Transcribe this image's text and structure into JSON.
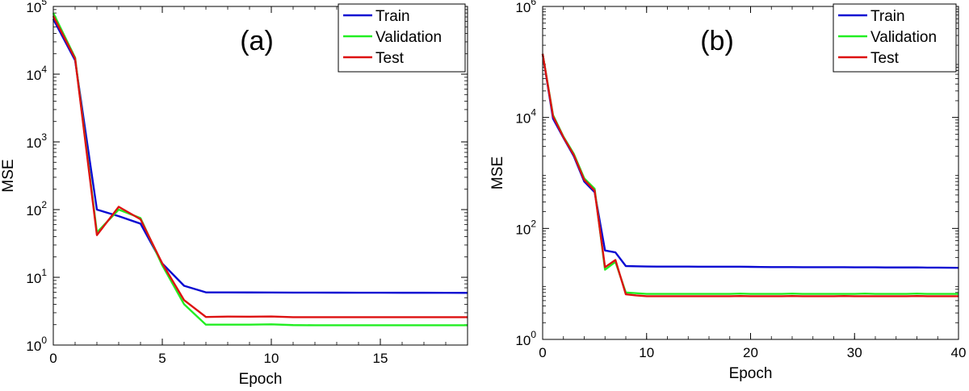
{
  "colors": {
    "train": "#0a0ad2",
    "validation": "#22ee22",
    "test": "#dd1111"
  },
  "chart_data": [
    {
      "type": "line",
      "panel_label": "(a)",
      "xlabel": "Epoch",
      "ylabel": "MSE",
      "yscale": "log",
      "xlim": [
        0,
        19
      ],
      "ylim": [
        1,
        100000
      ],
      "xticks": [
        0,
        5,
        10,
        15
      ],
      "yticks": [
        1,
        10,
        100,
        1000,
        10000,
        100000
      ],
      "ytick_exponents": [
        "0",
        "1",
        "2",
        "3",
        "4",
        "5"
      ],
      "legend_position": "top-right",
      "series": [
        {
          "name": "Train",
          "color_key": "train",
          "x": [
            0,
            1,
            2,
            3,
            4,
            5,
            6,
            7,
            8,
            9,
            10,
            11,
            12,
            13,
            14,
            15,
            16,
            17,
            18,
            19
          ],
          "y": [
            65000,
            16000,
            100,
            80,
            62,
            16,
            7.5,
            6.0,
            6.0,
            5.98,
            5.97,
            5.95,
            5.95,
            5.94,
            5.93,
            5.93,
            5.92,
            5.92,
            5.91,
            5.9
          ]
        },
        {
          "name": "Validation",
          "color_key": "validation",
          "x": [
            0,
            1,
            2,
            3,
            4,
            5,
            6,
            7,
            8,
            9,
            10,
            11,
            12,
            13,
            14,
            15,
            16,
            17,
            18,
            19
          ],
          "y": [
            80000,
            17500,
            46,
            100,
            75,
            15,
            4.0,
            2.0,
            2.0,
            2.0,
            2.02,
            1.97,
            1.96,
            1.96,
            1.96,
            1.96,
            1.96,
            1.96,
            1.96,
            1.96
          ]
        },
        {
          "name": "Test",
          "color_key": "test",
          "x": [
            0,
            1,
            2,
            3,
            4,
            5,
            6,
            7,
            8,
            9,
            10,
            11,
            12,
            13,
            14,
            15,
            16,
            17,
            18,
            19
          ],
          "y": [
            72000,
            17000,
            42,
            110,
            72,
            16,
            4.6,
            2.6,
            2.63,
            2.62,
            2.64,
            2.58,
            2.58,
            2.58,
            2.58,
            2.58,
            2.58,
            2.58,
            2.58,
            2.58
          ]
        }
      ]
    },
    {
      "type": "line",
      "panel_label": "(b)",
      "xlabel": "Epoch",
      "ylabel": "MSE",
      "yscale": "log",
      "xlim": [
        0,
        40
      ],
      "ylim": [
        1,
        1000000
      ],
      "xticks": [
        0,
        10,
        20,
        30,
        40
      ],
      "yticks": [
        1,
        100,
        10000,
        1000000
      ],
      "ytick_exponents": [
        "0",
        "2",
        "4",
        "6"
      ],
      "legend_position": "top-right",
      "series": [
        {
          "name": "Train",
          "color_key": "train",
          "x": [
            0,
            1,
            2,
            3,
            4,
            5,
            6,
            7,
            8,
            9,
            10,
            11,
            12,
            13,
            14,
            15,
            16,
            17,
            18,
            19,
            20,
            21,
            22,
            23,
            24,
            25,
            26,
            27,
            28,
            29,
            30,
            31,
            32,
            33,
            34,
            35,
            36,
            37,
            38,
            39,
            40
          ],
          "y": [
            140000,
            9500,
            4300,
            2000,
            700,
            450,
            40,
            37,
            21,
            20.8,
            20.6,
            20.5,
            20.5,
            20.5,
            20.5,
            20.4,
            20.4,
            20.4,
            20.4,
            20.4,
            20.3,
            20.2,
            20.1,
            20.1,
            20.1,
            20.0,
            20.0,
            20.0,
            20.0,
            20.0,
            19.9,
            19.9,
            19.9,
            19.8,
            19.8,
            19.8,
            19.8,
            19.7,
            19.7,
            19.6,
            19.5
          ]
        },
        {
          "name": "Validation",
          "color_key": "validation",
          "x": [
            0,
            1,
            2,
            3,
            4,
            5,
            6,
            7,
            8,
            9,
            10,
            11,
            12,
            13,
            14,
            15,
            16,
            17,
            18,
            19,
            20,
            21,
            22,
            23,
            24,
            25,
            26,
            27,
            28,
            29,
            30,
            31,
            32,
            33,
            34,
            35,
            36,
            37,
            38,
            39,
            40
          ],
          "y": [
            140000,
            11000,
            4500,
            2200,
            800,
            520,
            18,
            25,
            7.0,
            6.8,
            6.6,
            6.6,
            6.6,
            6.6,
            6.6,
            6.6,
            6.6,
            6.6,
            6.6,
            6.7,
            6.6,
            6.6,
            6.6,
            6.6,
            6.7,
            6.6,
            6.6,
            6.6,
            6.6,
            6.6,
            6.6,
            6.7,
            6.6,
            6.6,
            6.6,
            6.6,
            6.7,
            6.6,
            6.6,
            6.6,
            6.6
          ]
        },
        {
          "name": "Test",
          "color_key": "test",
          "x": [
            0,
            1,
            2,
            3,
            4,
            5,
            6,
            7,
            8,
            9,
            10,
            11,
            12,
            13,
            14,
            15,
            16,
            17,
            18,
            19,
            20,
            21,
            22,
            23,
            24,
            25,
            26,
            27,
            28,
            29,
            30,
            31,
            32,
            33,
            34,
            35,
            36,
            37,
            38,
            39,
            40
          ],
          "y": [
            140000,
            10500,
            4400,
            2100,
            750,
            480,
            20,
            27,
            6.5,
            6.2,
            6.0,
            6.0,
            6.0,
            6.0,
            6.0,
            6.0,
            6.0,
            6.0,
            6.0,
            6.05,
            6.0,
            6.0,
            6.0,
            6.0,
            6.05,
            6.0,
            6.0,
            6.0,
            6.0,
            6.05,
            6.0,
            6.0,
            6.0,
            6.0,
            6.0,
            6.0,
            6.05,
            6.0,
            6.0,
            6.0,
            6.0
          ]
        }
      ]
    }
  ]
}
